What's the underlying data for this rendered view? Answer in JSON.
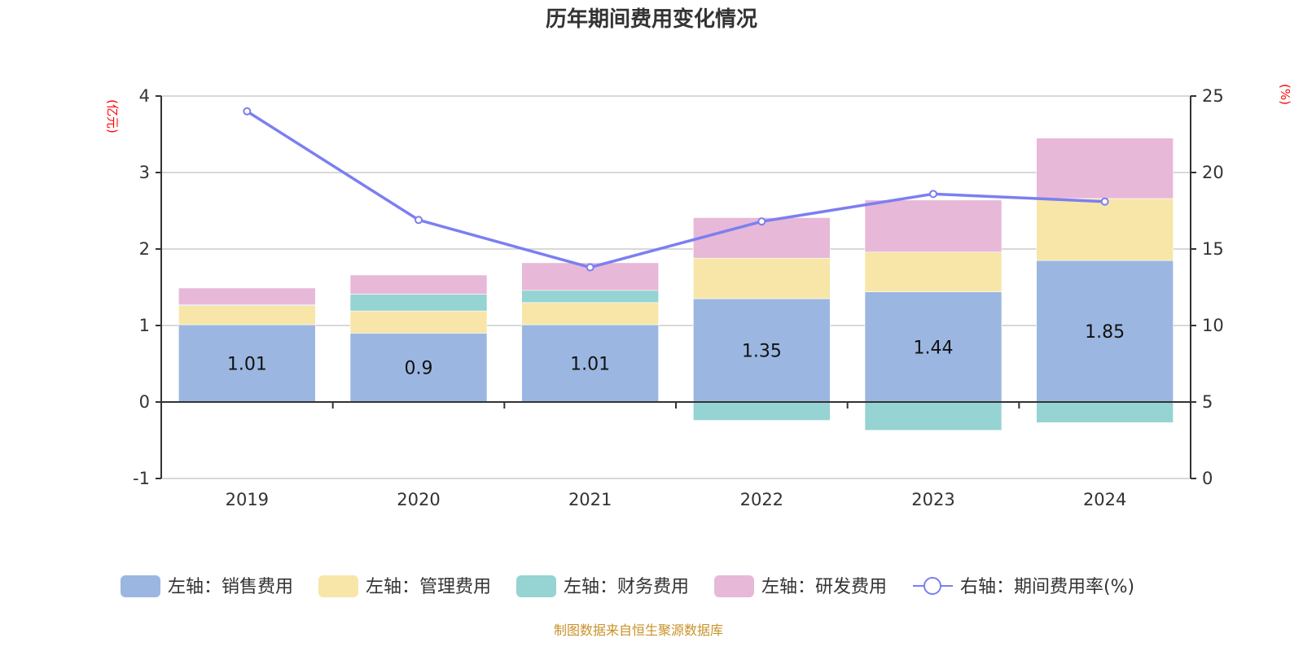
{
  "chart_data": {
    "type": "bar",
    "title": "历年期间费用变化情况",
    "categories": [
      "2019",
      "2020",
      "2021",
      "2022",
      "2023",
      "2024"
    ],
    "left_axis": {
      "unit": "(亿元)",
      "ylim": [
        -1,
        4
      ],
      "ticks": [
        -1,
        0,
        1,
        2,
        3,
        4
      ]
    },
    "right_axis": {
      "unit": "(%)",
      "ylim": [
        0,
        25
      ],
      "ticks": [
        0,
        5,
        10,
        15,
        20,
        25
      ]
    },
    "grid": true,
    "legend_position": "bottom",
    "series": [
      {
        "name": "左轴：销售费用",
        "axis": "left",
        "kind": "bar",
        "color": "#9bb7e1",
        "values": [
          1.01,
          0.9,
          1.01,
          1.35,
          1.44,
          1.85
        ],
        "show_labels": true,
        "labels": [
          "1.01",
          "0.9",
          "1.01",
          "1.35",
          "1.44",
          "1.85"
        ]
      },
      {
        "name": "左轴：管理费用",
        "axis": "left",
        "kind": "bar",
        "color": "#f7e6a8",
        "values": [
          0.25,
          0.29,
          0.29,
          0.53,
          0.52,
          0.81
        ]
      },
      {
        "name": "左轴：财务费用",
        "axis": "left",
        "kind": "bar",
        "color": "#96d3d3",
        "values": [
          0.01,
          0.22,
          0.16,
          -0.24,
          -0.37,
          -0.27
        ]
      },
      {
        "name": "左轴：研发费用",
        "axis": "left",
        "kind": "bar",
        "color": "#e7b8d8",
        "values": [
          0.22,
          0.25,
          0.36,
          0.53,
          0.68,
          0.79
        ]
      },
      {
        "name": "右轴：期间费用率(%)",
        "axis": "right",
        "kind": "line",
        "color": "#7b7ff0",
        "values": [
          24.0,
          16.9,
          13.8,
          16.8,
          18.6,
          18.1
        ]
      }
    ],
    "source": "制图数据来自恒生聚源数据库"
  }
}
